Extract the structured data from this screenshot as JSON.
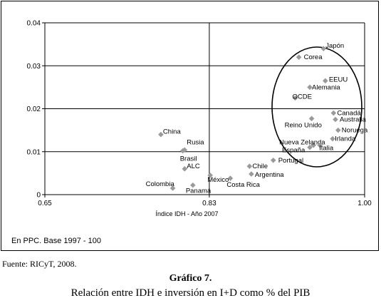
{
  "chart_data": {
    "type": "scatter",
    "title": "",
    "xlabel": "Índice IDH - Año 2007",
    "ylabel": "",
    "xlim": [
      0.65,
      1.0
    ],
    "ylim": [
      0,
      0.04
    ],
    "xticks": [
      "0.65",
      "0.83",
      "1.00"
    ],
    "yticks": [
      "0",
      "0.01",
      "0.02",
      "0.03",
      "0.04"
    ],
    "grid": "major y lines and reference line at x = 0.83",
    "marker_color": "#9a9a9a",
    "points": [
      {
        "label": "Japón",
        "x": 0.955,
        "y": 0.034
      },
      {
        "label": "Corea",
        "x": 0.928,
        "y": 0.032
      },
      {
        "label": "EEUU",
        "x": 0.957,
        "y": 0.0265
      },
      {
        "label": "Alemania",
        "x": 0.94,
        "y": 0.025
      },
      {
        "label": "OCDE",
        "x": 0.924,
        "y": 0.0225
      },
      {
        "label": "Canadá",
        "x": 0.966,
        "y": 0.019
      },
      {
        "label": "Australia",
        "x": 0.968,
        "y": 0.0175
      },
      {
        "label": "Reino Unido",
        "x": 0.942,
        "y": 0.0177
      },
      {
        "label": "Noruega",
        "x": 0.971,
        "y": 0.015
      },
      {
        "label": "Irlanda",
        "x": 0.965,
        "y": 0.013
      },
      {
        "label": "Nueva Zelanda",
        "x": 0.944,
        "y": 0.0115
      },
      {
        "label": "España",
        "x": 0.94,
        "y": 0.011
      },
      {
        "label": "Italia",
        "x": 0.951,
        "y": 0.0115
      },
      {
        "label": "Portugal",
        "x": 0.9,
        "y": 0.008
      },
      {
        "label": "Chile",
        "x": 0.874,
        "y": 0.0066
      },
      {
        "label": "Argentina",
        "x": 0.876,
        "y": 0.0048
      },
      {
        "label": "Costa Rica",
        "x": 0.853,
        "y": 0.0038
      },
      {
        "label": "México",
        "x": 0.831,
        "y": 0.0045
      },
      {
        "label": "Panamá",
        "x": 0.812,
        "y": 0.0022
      },
      {
        "label": "Colombia",
        "x": 0.79,
        "y": 0.0015
      },
      {
        "label": "China",
        "x": 0.777,
        "y": 0.014
      },
      {
        "label": "Rusia",
        "x": 0.803,
        "y": 0.0104
      },
      {
        "label": "Brasil",
        "x": 0.801,
        "y": 0.0102
      },
      {
        "label": "ALC",
        "x": 0.803,
        "y": 0.006
      }
    ],
    "annotations": [
      "ellipse around the high-IDH country group"
    ]
  },
  "note": "En PPC. Base 1997 - 100",
  "source": "Fuente: RICyT, 2008.",
  "caption": {
    "title": "Gráfico 7.",
    "subtitle": "Relación entre IDH e inversión en I+D como % del PIB"
  }
}
